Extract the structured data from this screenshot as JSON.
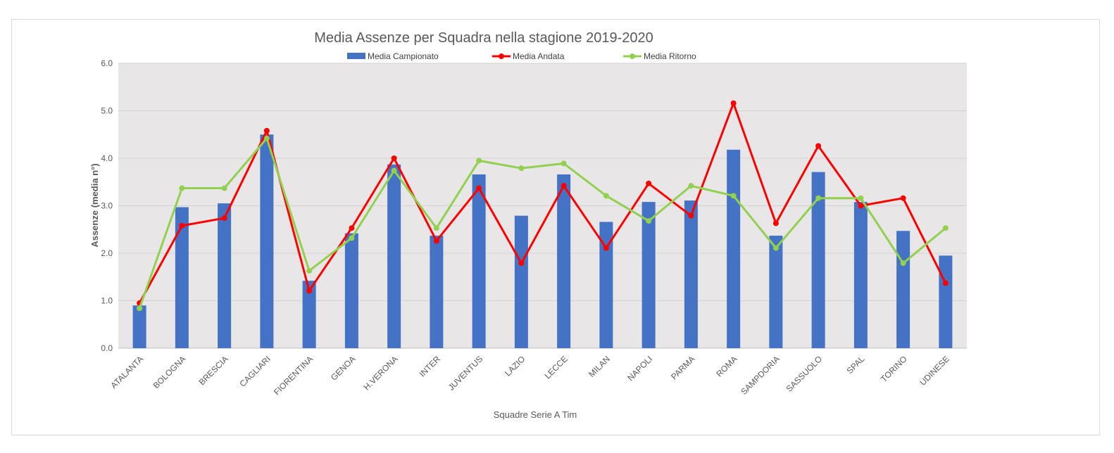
{
  "chart_data": {
    "type": "bar",
    "title": "Media Assenze per Squadra nella stagione 2019-2020",
    "xlabel": "Squadre Serie  A Tim",
    "ylabel": "Assenze (media n°)",
    "ylim": [
      0,
      6
    ],
    "yticks": [
      "0.0",
      "1.0",
      "2.0",
      "3.0",
      "4.0",
      "5.0",
      "6.0"
    ],
    "grid": true,
    "legend_position": "top",
    "categories": [
      "ATALANTA",
      "BOLOGNA",
      "BRESCIA",
      "CAGLIARI",
      "FIORENTINA",
      "GENOA",
      "H.VERONA",
      "INTER",
      "JUVENTUS",
      "LAZIO",
      "LECCE",
      "MILAN",
      "NAPOLI",
      "PARMA",
      "ROMA",
      "SAMPDORIA",
      "SASSUOLO",
      "SPAL",
      "TORINO",
      "UDINESE"
    ],
    "series": [
      {
        "name": "Media Campionato",
        "type": "bar",
        "color": "#4472c4",
        "values": [
          0.9,
          2.97,
          3.05,
          4.5,
          1.42,
          2.42,
          3.87,
          2.37,
          3.66,
          2.79,
          3.66,
          2.66,
          3.08,
          3.11,
          4.18,
          2.37,
          3.71,
          3.08,
          2.47,
          1.95
        ]
      },
      {
        "name": "Media Andata",
        "type": "line",
        "color": "#ff0000",
        "values": [
          0.95,
          2.58,
          2.74,
          4.58,
          1.21,
          2.53,
          4.0,
          2.26,
          3.37,
          1.79,
          3.42,
          2.11,
          3.47,
          2.79,
          5.16,
          2.63,
          4.26,
          3.0,
          3.16,
          1.37
        ]
      },
      {
        "name": "Media Ritorno",
        "type": "line",
        "color": "#92d050",
        "values": [
          0.84,
          3.37,
          3.37,
          4.42,
          1.63,
          2.32,
          3.74,
          2.53,
          3.95,
          3.79,
          3.89,
          3.21,
          2.68,
          3.42,
          3.21,
          2.11,
          3.16,
          3.16,
          1.79,
          2.53
        ]
      }
    ]
  }
}
